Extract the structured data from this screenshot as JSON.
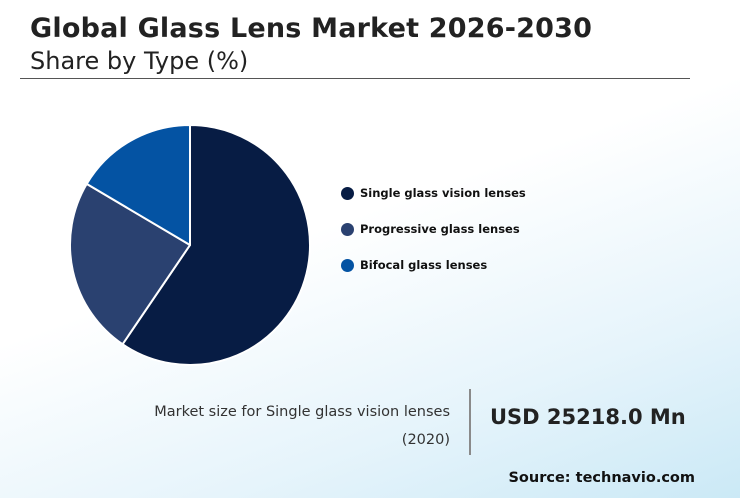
{
  "header": {
    "title": "Global Glass Lens Market 2026-2030",
    "subtitle": "Share by Type (%)"
  },
  "chart_data": {
    "type": "pie",
    "title": "Global Glass Lens Market 2026-2030",
    "subtitle": "Share by Type (%)",
    "categories": [
      "Single glass vision lenses",
      "Progressive glass lenses",
      "Bifocal glass lenses"
    ],
    "values": [
      59.5,
      24.0,
      16.5
    ],
    "colors": [
      "#071c44",
      "#2a4170",
      "#0453a3"
    ],
    "legend_position": "right"
  },
  "market": {
    "label": "Market size for Single glass vision lenses",
    "year": "(2020)",
    "value": "USD 25218.0 Mn"
  },
  "source": "Source: technavio.com"
}
